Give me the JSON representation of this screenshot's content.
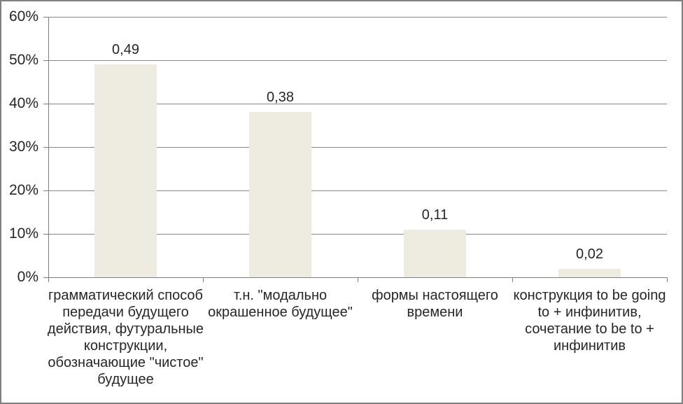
{
  "chart_data": {
    "type": "bar",
    "title": "",
    "xlabel": "",
    "ylabel": "",
    "categories": [
      "грамматический способ передачи будущего действия, футуральные конструкции, обозначающие \"чистое\" будущее",
      "т.н. \"модально окрашенное будущее\"",
      "формы настоящего времени",
      "конструкция to be going to + инфинитив, сочетание to be to + инфинитив"
    ],
    "values": [
      0.49,
      0.38,
      0.11,
      0.02
    ],
    "data_labels": [
      "0,49",
      "0,38",
      "0,11",
      "0,02"
    ],
    "y_ticks": [
      "0%",
      "10%",
      "20%",
      "30%",
      "40%",
      "50%",
      "60%"
    ],
    "ylim": [
      0,
      0.6
    ],
    "grid": true,
    "legend": false,
    "colors": {
      "bar_fill": "#EEECE1",
      "gridline": "#868686",
      "axis": "#808080",
      "text": "#262626",
      "frame_border": "#808080",
      "background": "#FFFFFF"
    }
  }
}
